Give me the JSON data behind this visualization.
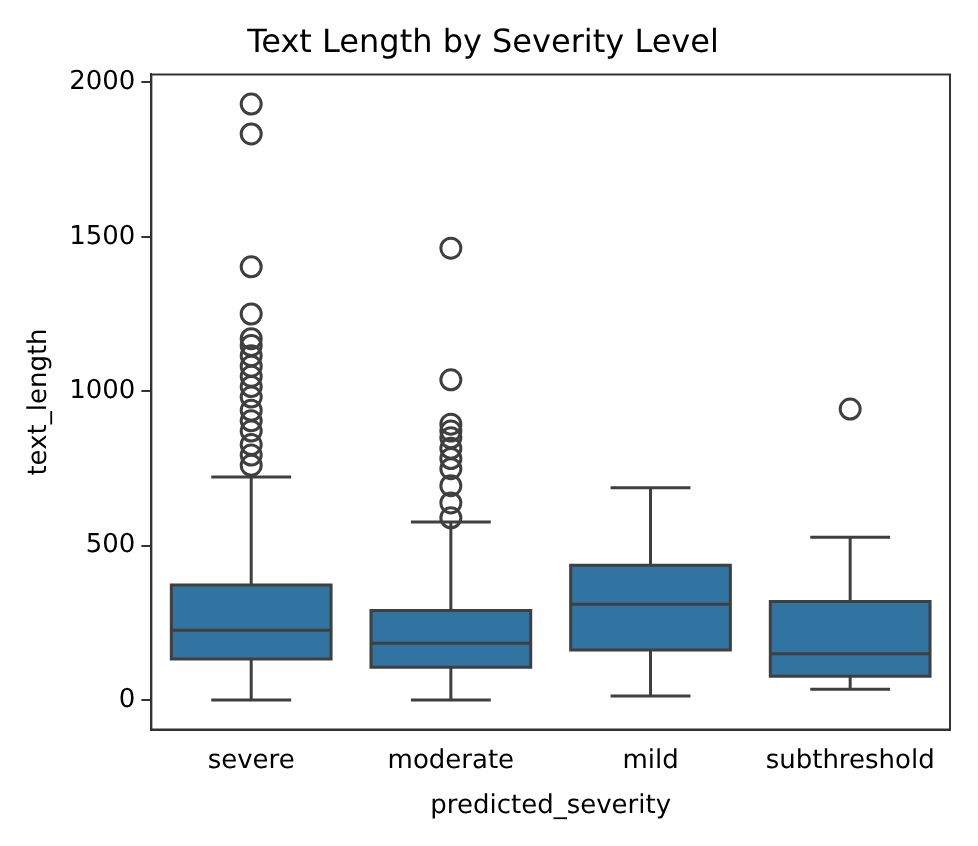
{
  "chart_data": {
    "type": "box",
    "title": "Text Length by Severity Level",
    "xlabel": "predicted_severity",
    "ylabel": "text_length",
    "categories": [
      "severe",
      "moderate",
      "mild",
      "subthreshold"
    ],
    "color": "#3274a1",
    "ylim": [
      -96,
      2026
    ],
    "yticks": [
      0,
      500,
      1000,
      1500,
      2000
    ],
    "grid": false,
    "boxes": [
      {
        "low": 0,
        "q1": 133,
        "median": 226,
        "q3": 372,
        "high": 722,
        "outliers": [
          1930,
          1833,
          1403,
          1250,
          1170,
          1148,
          1115,
          1081,
          1048,
          1015,
          981,
          938,
          904,
          871,
          827,
          793,
          760
        ]
      },
      {
        "low": 0,
        "q1": 106,
        "median": 184,
        "q3": 290,
        "high": 576,
        "outliers": [
          1463,
          1037,
          893,
          871,
          849,
          815,
          782,
          749,
          694,
          638,
          590
        ]
      },
      {
        "low": 13,
        "q1": 162,
        "median": 310,
        "q3": 436,
        "high": 687
      },
      {
        "low": 35,
        "q1": 77,
        "median": 150,
        "q3": 319,
        "high": 527,
        "outliers": [
          942
        ]
      }
    ]
  }
}
